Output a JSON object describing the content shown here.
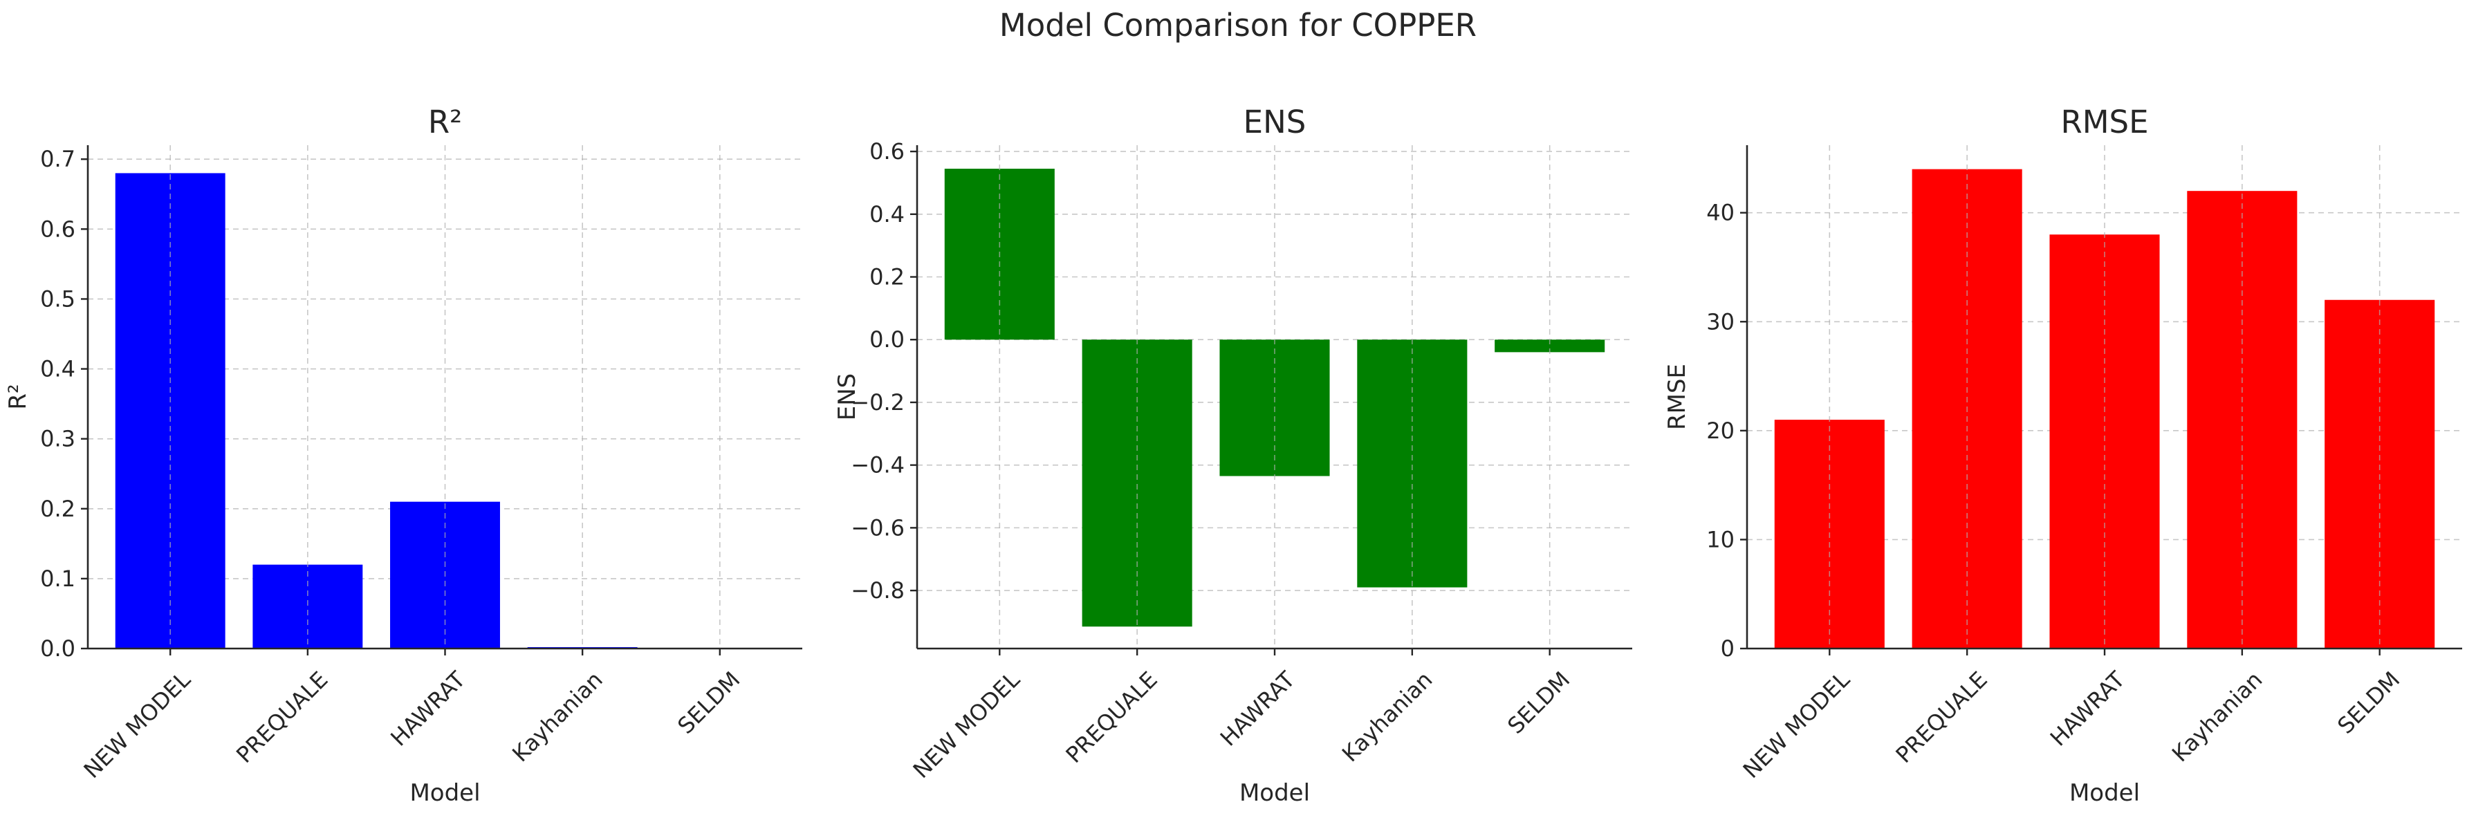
{
  "figure_title": "Model Comparison for COPPER",
  "chart_data": [
    {
      "type": "bar",
      "title": "R²",
      "xlabel": "Model",
      "ylabel": "R²",
      "categories": [
        "NEW MODEL",
        "PREQUALE",
        "HAWRAT",
        "Kayhanian",
        "SELDM"
      ],
      "values": [
        0.68,
        0.12,
        0.21,
        0.002,
        0.0
      ],
      "ylim": [
        0,
        0.72
      ],
      "yticks": [
        0.0,
        0.1,
        0.2,
        0.3,
        0.4,
        0.5,
        0.6,
        0.7
      ],
      "ytick_labels": [
        "0.0",
        "0.1",
        "0.2",
        "0.3",
        "0.4",
        "0.5",
        "0.6",
        "0.7"
      ],
      "color": "#0000ff",
      "grid": true
    },
    {
      "type": "bar",
      "title": "ENS",
      "xlabel": "Model",
      "ylabel": "ENS",
      "categories": [
        "NEW MODEL",
        "PREQUALE",
        "HAWRAT",
        "Kayhanian",
        "SELDM"
      ],
      "values": [
        0.545,
        -0.915,
        -0.435,
        -0.79,
        -0.04
      ],
      "ylim": [
        -0.985,
        0.62
      ],
      "yticks": [
        -0.8,
        -0.6,
        -0.4,
        -0.2,
        0.0,
        0.2,
        0.4,
        0.6
      ],
      "ytick_labels": [
        "−0.8",
        "−0.6",
        "−0.4",
        "−0.2",
        "0.0",
        "0.2",
        "0.4",
        "0.6"
      ],
      "color": "#008000",
      "grid": true
    },
    {
      "type": "bar",
      "title": "RMSE",
      "xlabel": "Model",
      "ylabel": "RMSE",
      "categories": [
        "NEW MODEL",
        "PREQUALE",
        "HAWRAT",
        "Kayhanian",
        "SELDM"
      ],
      "values": [
        21,
        44,
        38,
        42,
        32
      ],
      "ylim": [
        0,
        46.2
      ],
      "yticks": [
        0,
        10,
        20,
        30,
        40
      ],
      "ytick_labels": [
        "0",
        "10",
        "20",
        "30",
        "40"
      ],
      "color": "#ff0000",
      "grid": true
    }
  ]
}
